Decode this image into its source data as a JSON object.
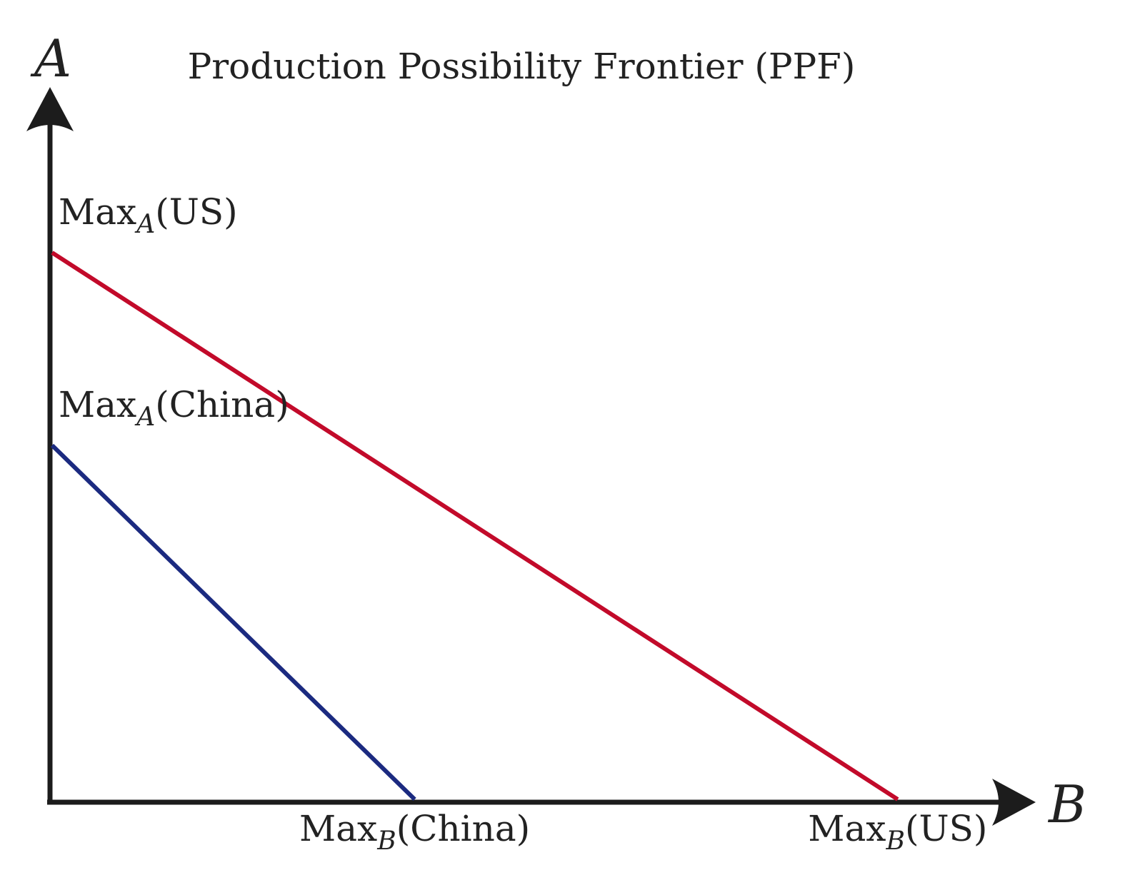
{
  "chart_data": {
    "type": "line",
    "title": "Production Possibility Frontier (PPF)",
    "xlabel": "B",
    "ylabel": "A",
    "grid": false,
    "series": [
      {
        "id": "us",
        "color": "#c20a2a",
        "intercept_a": {
          "prefix": "Max",
          "sub": "A",
          "suffix": "(US)",
          "value": 0.77
        },
        "intercept_b": {
          "prefix": "Max",
          "sub": "B",
          "suffix": "(US)",
          "value": 0.86
        }
      },
      {
        "id": "china",
        "color": "#1b2a80",
        "intercept_a": {
          "prefix": "Max",
          "sub": "A",
          "suffix": "(China)",
          "value": 0.5
        },
        "intercept_b": {
          "prefix": "Max",
          "sub": "B",
          "suffix": "(China)",
          "value": 0.37
        }
      }
    ],
    "axis_color": "#1c1c1c"
  }
}
